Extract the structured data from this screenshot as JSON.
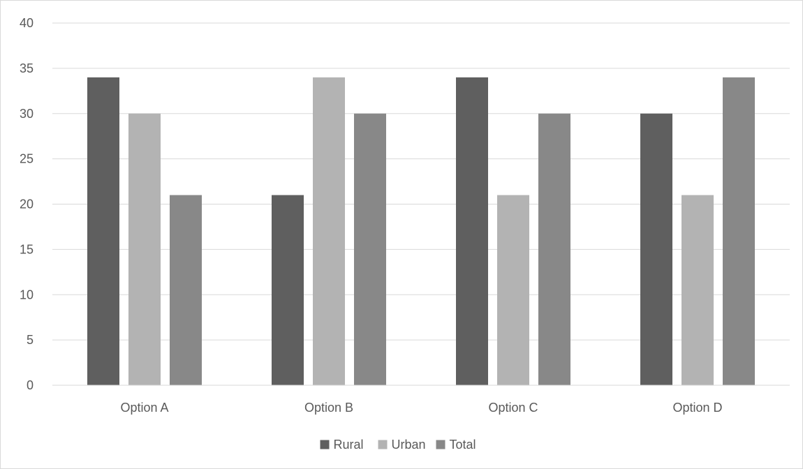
{
  "chart_data": {
    "type": "bar",
    "categories": [
      "Option A",
      "Option B",
      "Option C",
      "Option D"
    ],
    "series": [
      {
        "name": "Rural",
        "values": [
          34,
          21,
          34,
          30
        ],
        "color": "#5f5f5f"
      },
      {
        "name": "Urban",
        "values": [
          30,
          34,
          21,
          21
        ],
        "color": "#b3b3b3"
      },
      {
        "name": "Total",
        "values": [
          21,
          30,
          30,
          34
        ],
        "color": "#888888"
      }
    ],
    "title": "",
    "xlabel": "",
    "ylabel": "",
    "ylim": [
      0,
      40
    ],
    "yticks": [
      0,
      5,
      10,
      15,
      20,
      25,
      30,
      35,
      40
    ],
    "grid": true,
    "legend": "bottom-center",
    "colors": {
      "grid": "#d9d9d9",
      "text": "#595959",
      "border": "#d9d9d9"
    }
  }
}
